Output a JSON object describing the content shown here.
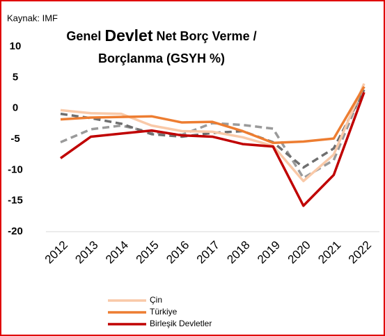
{
  "chart_data": {
    "type": "line",
    "source": "Kaynak: IMF",
    "title": [
      "Genel",
      "Devlet",
      "Net Borç Verme /",
      "Borçlanma (GSYH %)"
    ],
    "categories": [
      "2012",
      "2013",
      "2014",
      "2015",
      "2016",
      "2017",
      "2018",
      "2019",
      "2020",
      "2021",
      "2022"
    ],
    "series": [
      {
        "color": "#9a9a9a",
        "dashed": true,
        "values": [
          -5.5,
          -3.4,
          -2.8,
          -3.9,
          -4.3,
          -2.4,
          -2.7,
          -3.3,
          -11.3,
          -8.4,
          3.5
        ]
      },
      {
        "color": "#6f6f6f",
        "dashed": true,
        "values": [
          -0.9,
          -1.6,
          -2.5,
          -4.2,
          -4.6,
          -4.0,
          -3.7,
          -5.5,
          -9.6,
          -6.5,
          3.0
        ]
      },
      {
        "name": "Çin",
        "color": "#f9c9a8",
        "values": [
          -0.3,
          -0.8,
          -0.9,
          -2.8,
          -3.7,
          -3.8,
          -4.7,
          -6.1,
          -11.8,
          -7.5,
          4.0
        ]
      },
      {
        "name": "Türkiye",
        "color": "#ed7d31",
        "values": [
          -1.8,
          -1.5,
          -1.4,
          -1.3,
          -2.3,
          -2.2,
          -3.7,
          -5.6,
          -5.4,
          -4.9,
          3.5
        ]
      },
      {
        "name": "Birleşik Devletler",
        "color": "#c00000",
        "values": [
          -8.1,
          -4.6,
          -4.1,
          -3.6,
          -4.4,
          -4.6,
          -5.8,
          -6.2,
          -15.8,
          -10.8,
          2.6
        ]
      }
    ],
    "ylim": [
      -20,
      10
    ],
    "yticks": [
      -20,
      -15,
      -10,
      -5,
      0,
      5,
      10
    ],
    "grid": false
  }
}
